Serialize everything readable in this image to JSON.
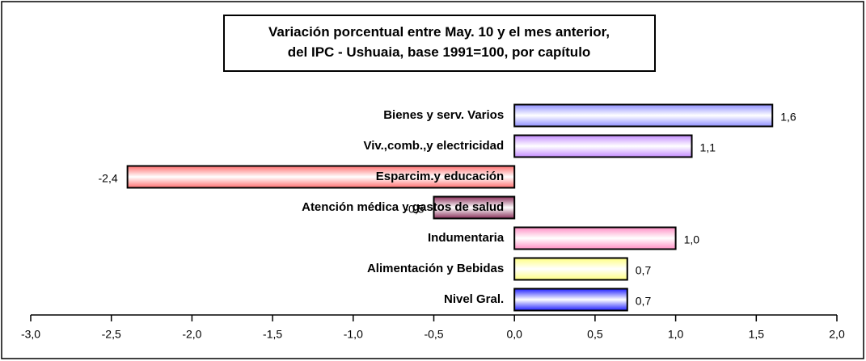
{
  "chart_data": {
    "type": "bar",
    "orientation": "horizontal",
    "title": "Variación porcentual entre May. 10 y el mes anterior,\ndel IPC - Ushuaia, base 1991=100, por capítulo",
    "categories": [
      "Bienes y serv. Varios",
      "Viv.,comb.,y electricidad",
      "Esparcim.y educación",
      "Atención médica y gastos de salud",
      "Indumentaria",
      "Alimentación y Bebidas",
      "Nivel Gral."
    ],
    "values": [
      1.6,
      1.1,
      -2.4,
      -0.5,
      1.0,
      0.7,
      0.7
    ],
    "value_labels": [
      "1,6",
      "1,1",
      "-2,4",
      "-0,5",
      "1,0",
      "0,7",
      "0,7"
    ],
    "colors": [
      "#8f8fff",
      "#c48cff",
      "#ff6f6f",
      "#8a2f5a",
      "#ff8fc4",
      "#ffff80",
      "#2020ff"
    ],
    "xlim": [
      -3,
      2
    ],
    "xticks": [
      {
        "value": -3,
        "label": "-3,0"
      },
      {
        "value": -2.5,
        "label": "-2,5"
      },
      {
        "value": -2,
        "label": "-2,0"
      },
      {
        "value": -1.5,
        "label": "-1,5"
      },
      {
        "value": -1,
        "label": "-1,0"
      },
      {
        "value": -0.5,
        "label": "-0,5"
      },
      {
        "value": 0,
        "label": "0,0"
      },
      {
        "value": 0.5,
        "label": "0,5"
      },
      {
        "value": 1,
        "label": "1,0"
      },
      {
        "value": 1.5,
        "label": "1,5"
      },
      {
        "value": 2,
        "label": "2,0"
      }
    ]
  }
}
